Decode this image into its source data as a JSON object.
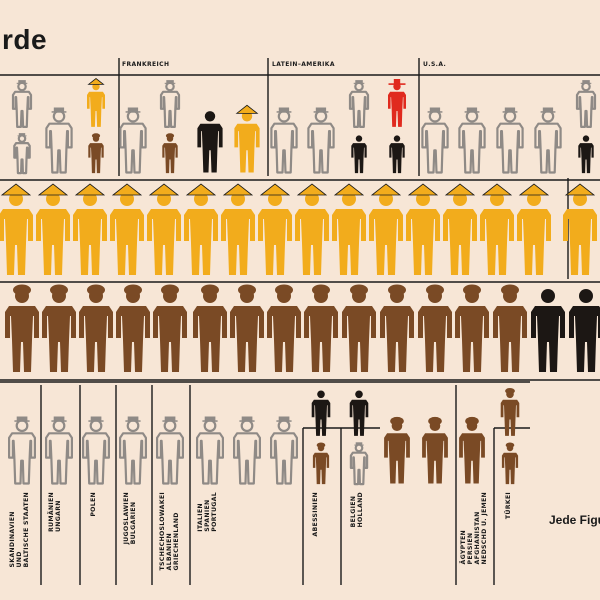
{
  "title": "rde",
  "footnote": "Jede Figu",
  "colors": {
    "background": "#f7e6d6",
    "white": "#8f8a86",
    "yellow": "#f2ac1c",
    "brown": "#7a4a25",
    "black": "#1c1714",
    "red": "#e02a1e",
    "line": "#1a1a1a"
  },
  "icons": {
    "white": "person-hat-outline-icon",
    "yellow": "person-conical-hat-icon",
    "brown": "person-turban-icon",
    "black": "person-black-icon",
    "red": "person-sombrero-icon"
  },
  "group_labels": {
    "frankreich": "FRANKREICH",
    "lateinamerika": "LATEIN–AMERIKA",
    "usa": "U.S.A."
  },
  "bottom_labels": {
    "skandinavien": "SKANDINAVIEN\nUND\nBALTISCHE STAATEN",
    "rumaenien": "RUMÄNIEN\nUNGARN",
    "polen": "POLEN",
    "jugoslawien": "JUGOSLAWIEN\nBULGARIEN",
    "tschechoslowakei": "TSCHECHOSLOWAKEI\nALBANIEN\nGRIECHENLAND",
    "italien": "ITALIEN\nSPANIEN\nPORTUGAL",
    "abessinien": "ABESSINIEN",
    "belgien": "BELGIEN\nHOLLAND",
    "aegypten": "ÄGYPTEN\nPERSIEN\nAFGHANISTAN\nNEDSCHD U. JEMEN",
    "tuerkei": "TÜRKEI"
  },
  "rows": [
    {
      "name": "row-1",
      "figures": [
        [
          "white",
          "white"
        ],
        [
          "white"
        ],
        [
          "yellow",
          "brown"
        ],
        [
          "white"
        ],
        [
          "white",
          "brown"
        ],
        [
          "black"
        ],
        [
          "yellow"
        ],
        [
          "white"
        ],
        [
          "white"
        ],
        [
          "white",
          "black"
        ],
        [
          "red",
          "black"
        ],
        [
          "white"
        ],
        [
          "white"
        ],
        [
          "white"
        ],
        [
          "white"
        ],
        [
          "white",
          "black"
        ]
      ]
    },
    {
      "name": "row-2",
      "figures": [
        [
          "yellow"
        ],
        [
          "yellow"
        ],
        [
          "yellow"
        ],
        [
          "yellow"
        ],
        [
          "yellow"
        ],
        [
          "yellow"
        ],
        [
          "yellow"
        ],
        [
          "yellow"
        ],
        [
          "yellow"
        ],
        [
          "yellow"
        ],
        [
          "yellow"
        ],
        [
          "yellow"
        ],
        [
          "yellow"
        ],
        [
          "yellow"
        ],
        [
          "yellow"
        ],
        [
          "yellow"
        ],
        [
          "yellow"
        ]
      ]
    },
    {
      "name": "row-3",
      "figures": [
        [
          "brown"
        ],
        [
          "brown"
        ],
        [
          "brown"
        ],
        [
          "brown"
        ],
        [
          "brown"
        ],
        [
          "brown"
        ],
        [
          "brown"
        ],
        [
          "brown"
        ],
        [
          "brown"
        ],
        [
          "brown"
        ],
        [
          "brown"
        ],
        [
          "brown"
        ],
        [
          "brown"
        ],
        [
          "brown"
        ],
        [
          "black"
        ],
        [
          "black"
        ]
      ]
    },
    {
      "name": "row-4",
      "figures": [
        [
          "white"
        ],
        [
          "white"
        ],
        [
          "white"
        ],
        [
          "white"
        ],
        [
          "white"
        ],
        [
          "white"
        ],
        [
          "white"
        ],
        [
          "white"
        ],
        [
          "black",
          "brown"
        ],
        [
          "black",
          "white"
        ],
        [
          "brown"
        ],
        [
          "brown"
        ],
        [
          "brown"
        ],
        [
          "brown",
          "brown"
        ]
      ]
    }
  ]
}
